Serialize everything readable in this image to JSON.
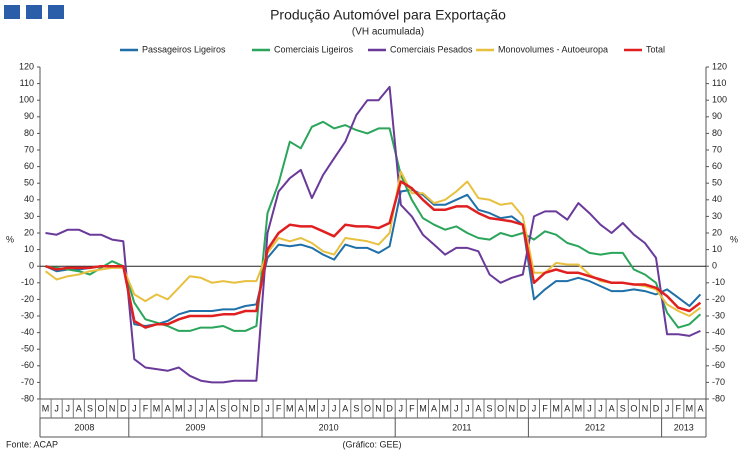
{
  "chart_data": {
    "type": "line",
    "title": "Produção Automóvel para Exportação",
    "subtitle": "(VH acumulada)",
    "ylabel": "%",
    "y2label": "%",
    "source": "Fonte: ACAP",
    "credit": "(Gráfico: GEE)",
    "categories": [
      "M",
      "J",
      "J",
      "A",
      "S",
      "O",
      "N",
      "D",
      "J",
      "F",
      "M",
      "A",
      "M",
      "J",
      "J",
      "A",
      "S",
      "O",
      "N",
      "D",
      "J",
      "F",
      "M",
      "A",
      "M",
      "J",
      "J",
      "A",
      "S",
      "O",
      "N",
      "D",
      "J",
      "F",
      "M",
      "A",
      "M",
      "J",
      "J",
      "A",
      "S",
      "O",
      "N",
      "D",
      "J",
      "F",
      "M",
      "A",
      "M",
      "J",
      "J",
      "A",
      "S",
      "O",
      "N",
      "D",
      "J",
      "F",
      "M",
      "A"
    ],
    "years": [
      "2008",
      "2009",
      "2010",
      "2011",
      "2012",
      "2013"
    ],
    "ylim": [
      -80,
      120
    ],
    "yticks": [
      -80,
      -70,
      -60,
      -50,
      -40,
      -30,
      -20,
      -10,
      0,
      10,
      20,
      30,
      40,
      50,
      60,
      70,
      80,
      90,
      100,
      110,
      120
    ],
    "y2lim": [
      -80,
      120
    ],
    "y2ticks": [
      -80,
      -70,
      -60,
      -50,
      -40,
      -30,
      -20,
      -10,
      0,
      10,
      20,
      30,
      40,
      50,
      60,
      70,
      80,
      90,
      100,
      110,
      120
    ],
    "series": [
      {
        "name": "Passageiros Ligeiros",
        "color": "#1f6fa8",
        "values": [
          0,
          -3,
          -2,
          -2,
          -1,
          0,
          0,
          0,
          -35,
          -36,
          -35,
          -33,
          -29,
          -27,
          -27,
          -27,
          -26,
          -26,
          -24,
          -23,
          5,
          13,
          12,
          13,
          11,
          7,
          4,
          13,
          11,
          11,
          8,
          12,
          45,
          46,
          43,
          37,
          37,
          40,
          43,
          34,
          32,
          29,
          30,
          25,
          -20,
          -14,
          -9,
          -9,
          -7,
          -9,
          -12,
          -15,
          -15,
          -14,
          -15,
          -17,
          -14,
          -19,
          -24,
          -17
        ]
      },
      {
        "name": "Comerciais Ligeiros",
        "color": "#2aa55a",
        "values": [
          0,
          -1,
          -2,
          -3,
          -5,
          -1,
          3,
          0,
          -22,
          -32,
          -34,
          -36,
          -39,
          -39,
          -37,
          -37,
          -36,
          -39,
          -39,
          -36,
          32,
          50,
          75,
          71,
          84,
          87,
          83,
          85,
          82,
          80,
          83,
          83,
          55,
          40,
          29,
          25,
          22,
          24,
          20,
          17,
          16,
          20,
          18,
          20,
          16,
          21,
          19,
          14,
          12,
          8,
          7,
          8,
          8,
          -2,
          -5,
          -10,
          -28,
          -37,
          -35,
          -29
        ]
      },
      {
        "name": "Comerciais Pesados",
        "color": "#6a3a9a",
        "values": [
          20,
          19,
          22,
          22,
          19,
          19,
          16,
          15,
          -56,
          -61,
          -62,
          -63,
          -61,
          -66,
          -69,
          -70,
          -70,
          -69,
          -69,
          -69,
          20,
          45,
          53,
          58,
          41,
          55,
          65,
          75,
          91,
          100,
          100,
          108,
          37,
          30,
          19,
          13,
          7,
          11,
          11,
          9,
          -5,
          -10,
          -7,
          -5,
          30,
          33,
          33,
          28,
          38,
          32,
          25,
          20,
          26,
          19,
          14,
          5,
          -41,
          -41,
          -42,
          -39
        ]
      },
      {
        "name": "Monovolumes - Autoeuropa",
        "color": "#e8c040",
        "values": [
          -3,
          -8,
          -6,
          -5,
          -3,
          -2,
          -1,
          -1,
          -17,
          -21,
          -17,
          -20,
          -13,
          -6,
          -7,
          -10,
          -9,
          -10,
          -9,
          -9,
          8,
          17,
          15,
          17,
          14,
          9,
          7,
          17,
          16,
          15,
          13,
          20,
          57,
          44,
          44,
          38,
          40,
          45,
          51,
          41,
          40,
          37,
          38,
          30,
          -4,
          -4,
          2,
          1,
          1,
          -5,
          -9,
          -10,
          -10,
          -11,
          -12,
          -14,
          -23,
          -27,
          -30,
          -25
        ]
      },
      {
        "name": "Total",
        "color": "#e02020",
        "values": [
          0,
          -2,
          -1,
          -1,
          -1,
          0,
          0,
          0,
          -33,
          -37,
          -35,
          -35,
          -32,
          -30,
          -30,
          -30,
          -29,
          -29,
          -27,
          -27,
          10,
          20,
          25,
          24,
          24,
          21,
          18,
          25,
          24,
          24,
          23,
          26,
          51,
          47,
          40,
          34,
          34,
          36,
          36,
          32,
          29,
          28,
          27,
          25,
          -10,
          -4,
          -2,
          -4,
          -4,
          -6,
          -8,
          -10,
          -10,
          -11,
          -11,
          -13,
          -18,
          -25,
          -27,
          -22
        ]
      }
    ]
  }
}
